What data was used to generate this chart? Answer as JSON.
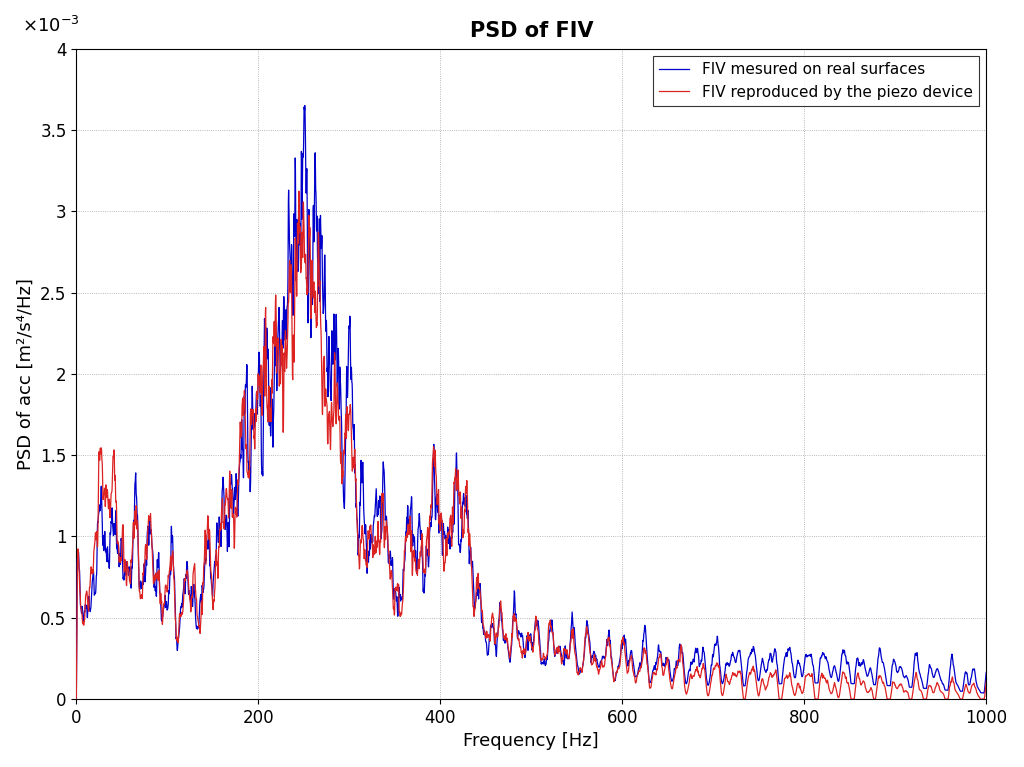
{
  "title": "PSD of FIV",
  "xlabel": "Frequency [Hz]",
  "ylabel": "PSD of acc [m²/s⁴/Hz]",
  "legend_blue": "FIV mesured on real surfaces",
  "legend_red": "FIV reproduced by the piezo device",
  "xlim": [
    0,
    1000
  ],
  "ylim": [
    0,
    0.004
  ],
  "yticks": [
    0,
    0.0005,
    0.001,
    0.0015,
    0.002,
    0.0025,
    0.003,
    0.0035,
    0.004
  ],
  "ytick_labels": [
    "0",
    "0.5",
    "1",
    "1.5",
    "2",
    "2.5",
    "3",
    "3.5",
    "4"
  ],
  "xticks": [
    0,
    200,
    400,
    600,
    800,
    1000
  ],
  "color_blue": "#0000CC",
  "color_red": "#DD2222",
  "bg_color": "#ffffff",
  "grid_color": "#999999",
  "title_fontsize": 15,
  "label_fontsize": 13,
  "tick_fontsize": 12,
  "legend_fontsize": 11,
  "line_width": 0.9
}
